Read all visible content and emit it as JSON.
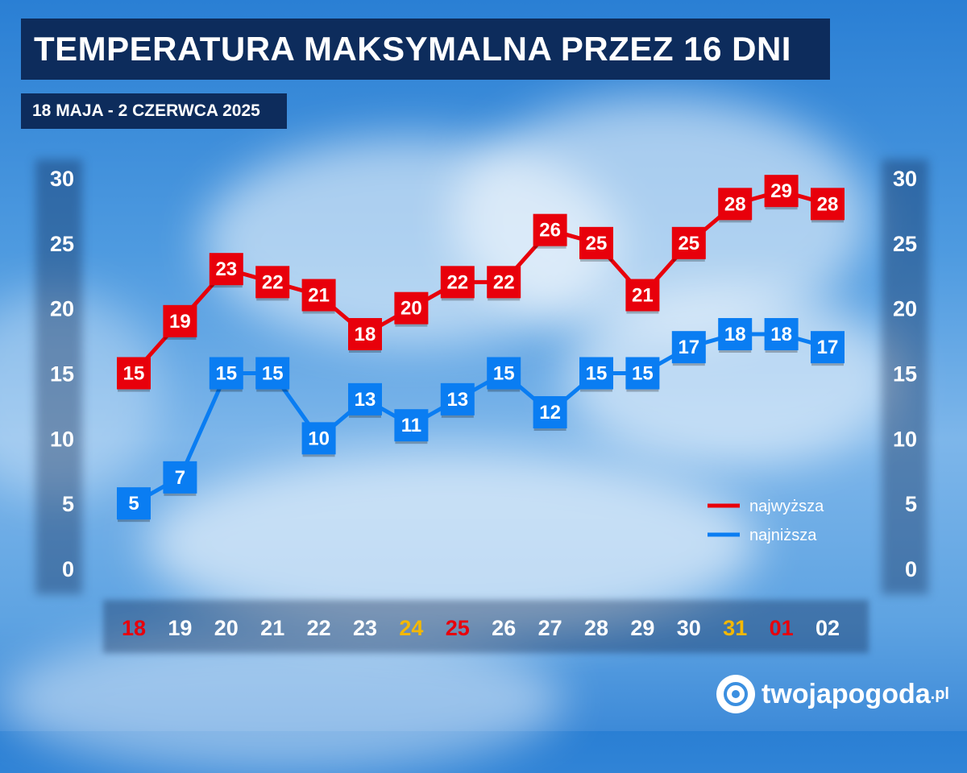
{
  "title": "TEMPERATURA MAKSYMALNA PRZEZ 16 DNI",
  "subtitle": "18 MAJA - 2 CZERWCA 2025",
  "logo": {
    "name": "twojapogoda",
    "suffix": ".pl"
  },
  "colors": {
    "max": "#e8000b",
    "min": "#0a7df2",
    "weekend_sat": "#f5b800",
    "weekend_sun": "#e8000b",
    "day_default": "#ffffff"
  },
  "chart_data": {
    "type": "line",
    "ylim": [
      0,
      30
    ],
    "yticks": [
      0,
      5,
      10,
      15,
      20,
      25,
      30
    ],
    "categories": [
      "18",
      "19",
      "20",
      "21",
      "22",
      "23",
      "24",
      "25",
      "26",
      "27",
      "28",
      "29",
      "30",
      "31",
      "01",
      "02"
    ],
    "category_styles": [
      "sun",
      "default",
      "default",
      "default",
      "default",
      "default",
      "sat",
      "sun",
      "default",
      "default",
      "default",
      "default",
      "default",
      "sat",
      "sun",
      "default"
    ],
    "series": [
      {
        "name": "najwyższa",
        "color": "#e8000b",
        "values": [
          15,
          19,
          23,
          22,
          21,
          18,
          20,
          22,
          22,
          26,
          25,
          21,
          25,
          28,
          29,
          28
        ]
      },
      {
        "name": "najniższa",
        "color": "#0a7df2",
        "values": [
          5,
          7,
          15,
          15,
          10,
          13,
          11,
          13,
          15,
          12,
          15,
          15,
          17,
          18,
          18,
          17
        ]
      }
    ],
    "legend_position": "bottom-right"
  }
}
